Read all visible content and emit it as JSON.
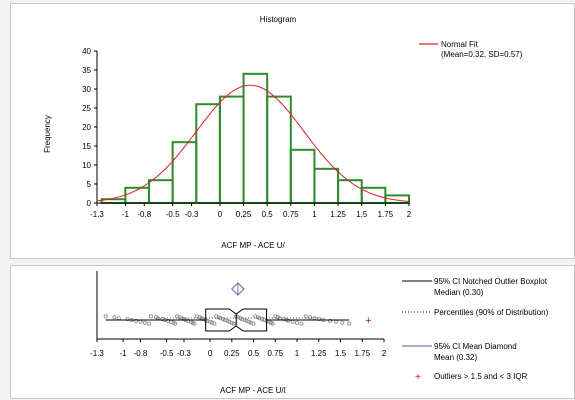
{
  "chart_data": [
    {
      "type": "bar",
      "title": "Histogram",
      "ylabel": "Frequency",
      "xlabel": "ACF MP - ACE U/",
      "xlim": [
        -1.3,
        2.0
      ],
      "ylim": [
        0,
        40
      ],
      "yticks": [
        0,
        5,
        10,
        15,
        20,
        25,
        30,
        35,
        40
      ],
      "xticks": [
        -1.3,
        -1.0,
        -0.8,
        -0.5,
        -0.3,
        0.0,
        0.25,
        0.5,
        0.75,
        1.0,
        1.25,
        1.5,
        1.75,
        2.0
      ],
      "xtick_labels": [
        "-1.3",
        "-1",
        "-0.8",
        "-0.5",
        "-0.3",
        "0",
        "0.25",
        "0.5",
        "0.75",
        "1",
        "1.25",
        "1.5",
        "1.75",
        "2"
      ],
      "bins": [
        {
          "from": -1.25,
          "to": -1.0,
          "count": 1
        },
        {
          "from": -1.0,
          "to": -0.75,
          "count": 4
        },
        {
          "from": -0.75,
          "to": -0.5,
          "count": 6
        },
        {
          "from": -0.5,
          "to": -0.25,
          "count": 16
        },
        {
          "from": -0.25,
          "to": 0.0,
          "count": 26
        },
        {
          "from": 0.0,
          "to": 0.25,
          "count": 28
        },
        {
          "from": 0.25,
          "to": 0.5,
          "count": 34
        },
        {
          "from": 0.5,
          "to": 0.75,
          "count": 28
        },
        {
          "from": 0.75,
          "to": 1.0,
          "count": 14
        },
        {
          "from": 1.0,
          "to": 1.25,
          "count": 9
        },
        {
          "from": 1.25,
          "to": 1.5,
          "count": 6
        },
        {
          "from": 1.5,
          "to": 1.75,
          "count": 4
        },
        {
          "from": 1.75,
          "to": 2.0,
          "count": 2
        }
      ],
      "bar_color": "#2e8b2e",
      "normal_fit": {
        "mean": 0.32,
        "sd": 0.57,
        "peak": 31,
        "color": "#e02020"
      },
      "legend": {
        "position": "top-right",
        "entries": [
          {
            "label": "Normal Fit",
            "sublabel": "(Mean=0.32, SD=0.57)",
            "color": "#e02020"
          }
        ]
      }
    },
    {
      "type": "boxplot",
      "xlabel": "ACF MP - ACE U/I",
      "xlim": [
        -1.3,
        2.0
      ],
      "xticks": [
        -1.3,
        -1.0,
        -0.8,
        -0.5,
        -0.3,
        0.0,
        0.25,
        0.5,
        0.75,
        1.0,
        1.25,
        1.5,
        1.75,
        2.0
      ],
      "xtick_labels": [
        "-1.3",
        "-1",
        "-0.8",
        "-0.5",
        "-0.3",
        "0",
        "0.25",
        "0.5",
        "0.75",
        "1",
        "1.25",
        "1.5",
        "1.75",
        "2"
      ],
      "whisker_low": -1.2,
      "q1": -0.05,
      "median": 0.3,
      "q3": 0.65,
      "whisker_high": 1.6,
      "notch_low": 0.22,
      "notch_high": 0.38,
      "percentile_5": -0.6,
      "percentile_95": 1.3,
      "mean": 0.32,
      "mean_ci": [
        0.25,
        0.39
      ],
      "outliers": [
        1.82
      ],
      "points": [
        -1.2,
        -1.1,
        -1.05,
        -0.95,
        -0.9,
        -0.85,
        -0.8,
        -0.75,
        -0.7,
        -0.68,
        -0.62,
        -0.6,
        -0.55,
        -0.52,
        -0.48,
        -0.45,
        -0.42,
        -0.4,
        -0.38,
        -0.35,
        -0.32,
        -0.3,
        -0.28,
        -0.25,
        -0.22,
        -0.2,
        -0.18,
        -0.15,
        -0.12,
        -0.1,
        -0.08,
        -0.05,
        -0.03,
        0.0,
        0.02,
        0.05,
        0.07,
        0.1,
        0.12,
        0.15,
        0.17,
        0.2,
        0.22,
        0.25,
        0.27,
        0.3,
        0.32,
        0.35,
        0.37,
        0.4,
        0.42,
        0.45,
        0.47,
        0.5,
        0.52,
        0.55,
        0.57,
        0.6,
        0.62,
        0.65,
        0.68,
        0.7,
        0.72,
        0.75,
        0.78,
        0.8,
        0.85,
        0.88,
        0.9,
        0.95,
        1.0,
        1.05,
        1.1,
        1.15,
        1.2,
        1.25,
        1.3,
        1.38,
        1.45,
        1.52,
        1.6
      ],
      "legend": {
        "position": "right",
        "entries": [
          {
            "label": "95% CI Notched Outlier Boxplot",
            "sublabel": "Median (0.30)",
            "style": "solid",
            "color": "#000000"
          },
          {
            "label": "Percentiles (90% of Distribution)",
            "style": "dotted",
            "color": "#000000"
          },
          {
            "label": "95% CI Mean Diamond",
            "sublabel": "Mean (0.32)",
            "style": "solid",
            "color": "#6a7fb0"
          },
          {
            "label": "Outliers > 1.5 and < 3 IQR",
            "style": "marker",
            "marker": "+",
            "color": "#b01818"
          }
        ]
      }
    }
  ]
}
